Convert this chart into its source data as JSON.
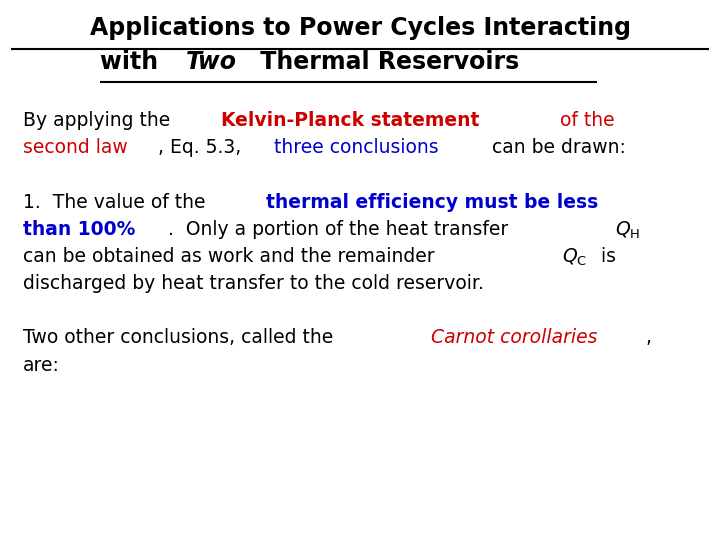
{
  "bg": "#ffffff",
  "title_fs": 17,
  "body_fs": 13.5,
  "title_line1": "Applications to Power Cycles Interacting",
  "title_line2_parts": [
    {
      "text": "with ",
      "bold": true,
      "italic": false
    },
    {
      "text": "Two",
      "bold": true,
      "italic": true
    },
    {
      "text": " Thermal Reservoirs",
      "bold": true,
      "italic": false
    }
  ],
  "underline_color": "#000000",
  "para1_line1": [
    {
      "text": "By applying the ",
      "color": "#000000",
      "bold": false,
      "italic": false
    },
    {
      "text": "Kelvin-Planck statement",
      "color": "#cc0000",
      "bold": true,
      "italic": false
    },
    {
      "text": " of the",
      "color": "#cc0000",
      "bold": false,
      "italic": false
    }
  ],
  "para1_line2": [
    {
      "text": "second law",
      "color": "#cc0000",
      "bold": false,
      "italic": false
    },
    {
      "text": ", Eq. 5.3, ",
      "color": "#000000",
      "bold": false,
      "italic": false
    },
    {
      "text": "three conclusions",
      "color": "#0000cc",
      "bold": false,
      "italic": false
    },
    {
      "text": " can be drawn:",
      "color": "#000000",
      "bold": false,
      "italic": false
    }
  ],
  "para2_line1": [
    {
      "text": "1.  The value of the ",
      "color": "#000000",
      "bold": false,
      "italic": false
    },
    {
      "text": "thermal efficiency must be less",
      "color": "#0000cc",
      "bold": true,
      "italic": false
    }
  ],
  "para2_line2": [
    {
      "text": "than 100%",
      "color": "#0000cc",
      "bold": true,
      "italic": false
    },
    {
      "text": ".  Only a portion of the heat transfer ",
      "color": "#000000",
      "bold": false,
      "italic": false
    },
    {
      "text": "$\\mathit{Q}_{\\mathrm{H}}$",
      "color": "#000000",
      "bold": false,
      "italic": false,
      "math": true
    }
  ],
  "para2_line3": [
    {
      "text": "can be obtained as work and the remainder ",
      "color": "#000000",
      "bold": false,
      "italic": false
    },
    {
      "text": "$\\mathit{Q}_{\\mathrm{C}}$",
      "color": "#000000",
      "bold": false,
      "italic": false,
      "math": true
    },
    {
      "text": " is",
      "color": "#000000",
      "bold": false,
      "italic": false
    }
  ],
  "para2_line4": [
    {
      "text": "discharged by heat transfer to the cold reservoir.",
      "color": "#000000",
      "bold": false,
      "italic": false
    }
  ],
  "para3_line1": [
    {
      "text": "Two other conclusions, called the ",
      "color": "#000000",
      "bold": false,
      "italic": false
    },
    {
      "text": "Carnot corollaries",
      "color": "#cc0000",
      "bold": false,
      "italic": true
    },
    {
      "text": ",",
      "color": "#000000",
      "bold": false,
      "italic": false
    }
  ],
  "para3_line2": [
    {
      "text": "are:",
      "color": "#000000",
      "bold": false,
      "italic": false
    }
  ]
}
